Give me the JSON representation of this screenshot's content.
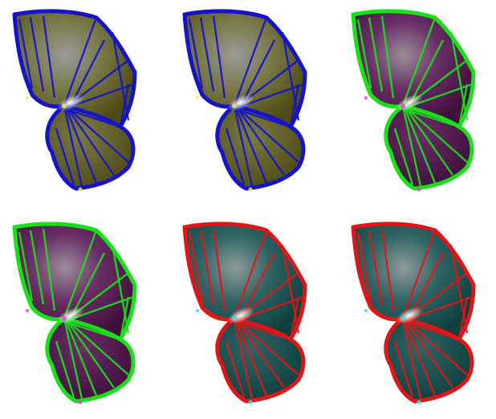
{
  "gallery": {
    "panels": [
      {
        "id": "p1",
        "edge": "#1414c8",
        "fill_outer": "#4e4a10",
        "fill_mid": "#7b7a4a",
        "fill_center": "#9a9a9a",
        "highlight": "#ffffff",
        "spark": "#f2e840"
      },
      {
        "id": "p2",
        "edge": "#1414c8",
        "fill_outer": "#4e4a10",
        "fill_mid": "#7b7a4a",
        "fill_center": "#9a9a9a",
        "highlight": "#ffffff",
        "spark": "#f2e840"
      },
      {
        "id": "p3",
        "edge": "#19e019",
        "fill_outer": "#3e0f3a",
        "fill_mid": "#6a2e66",
        "fill_center": "#9a8f9a",
        "highlight": "#ffffff",
        "spark": "#e040e0"
      },
      {
        "id": "p4",
        "edge": "#19e019",
        "fill_outer": "#3e0f3a",
        "fill_mid": "#6a2e66",
        "fill_center": "#9a8f9a",
        "highlight": "#ffffff",
        "spark": "#e040e0"
      },
      {
        "id": "p5",
        "edge": "#e01616",
        "fill_outer": "#0f3f3f",
        "fill_mid": "#2f6464",
        "fill_center": "#8f9a9a",
        "highlight": "#ffffff",
        "spark": "#30e0e0"
      },
      {
        "id": "p6",
        "edge": "#e01616",
        "fill_outer": "#0f3f3f",
        "fill_mid": "#2f6464",
        "fill_center": "#8f9a9a",
        "highlight": "#ffffff",
        "spark": "#30e0e0"
      }
    ]
  }
}
